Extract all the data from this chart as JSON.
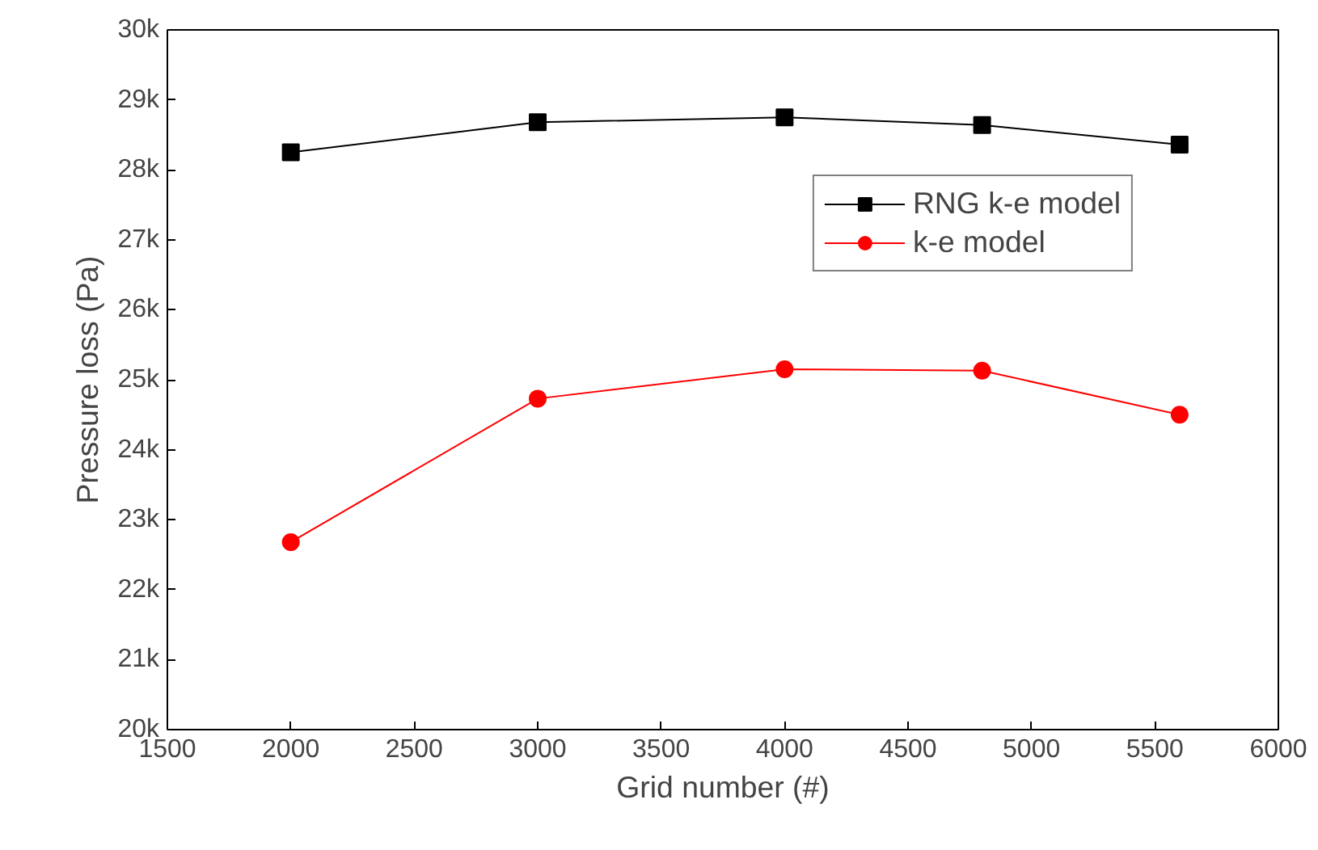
{
  "chart_data": {
    "type": "line",
    "xlabel": "Grid number (#)",
    "ylabel": "Pressure loss (Pa)",
    "x": [
      2000,
      3000,
      4000,
      4800,
      5600
    ],
    "series": [
      {
        "name": "RNG k-e model",
        "color": "#000000",
        "marker": "square",
        "values": [
          28250,
          28680,
          28750,
          28640,
          28360
        ]
      },
      {
        "name": "k-e model",
        "color": "#ff0000",
        "marker": "circle",
        "values": [
          22680,
          24730,
          25150,
          25130,
          24500
        ]
      }
    ],
    "xlim": [
      1500,
      6000
    ],
    "xticks": [
      1500,
      2000,
      2500,
      3000,
      3500,
      4000,
      4500,
      5000,
      5500,
      6000
    ],
    "ylim": [
      20000,
      30000
    ],
    "yticks": [
      {
        "value": 20000,
        "label": "20k"
      },
      {
        "value": 21000,
        "label": "21k"
      },
      {
        "value": 22000,
        "label": "22k"
      },
      {
        "value": 23000,
        "label": "23k"
      },
      {
        "value": 24000,
        "label": "24k"
      },
      {
        "value": 25000,
        "label": "25k"
      },
      {
        "value": 26000,
        "label": "26k"
      },
      {
        "value": 27000,
        "label": "27k"
      },
      {
        "value": 28000,
        "label": "28k"
      },
      {
        "value": 29000,
        "label": "29k"
      },
      {
        "value": 30000,
        "label": "30k"
      }
    ],
    "grid": false,
    "legend": "top right",
    "line_style": "solid"
  }
}
